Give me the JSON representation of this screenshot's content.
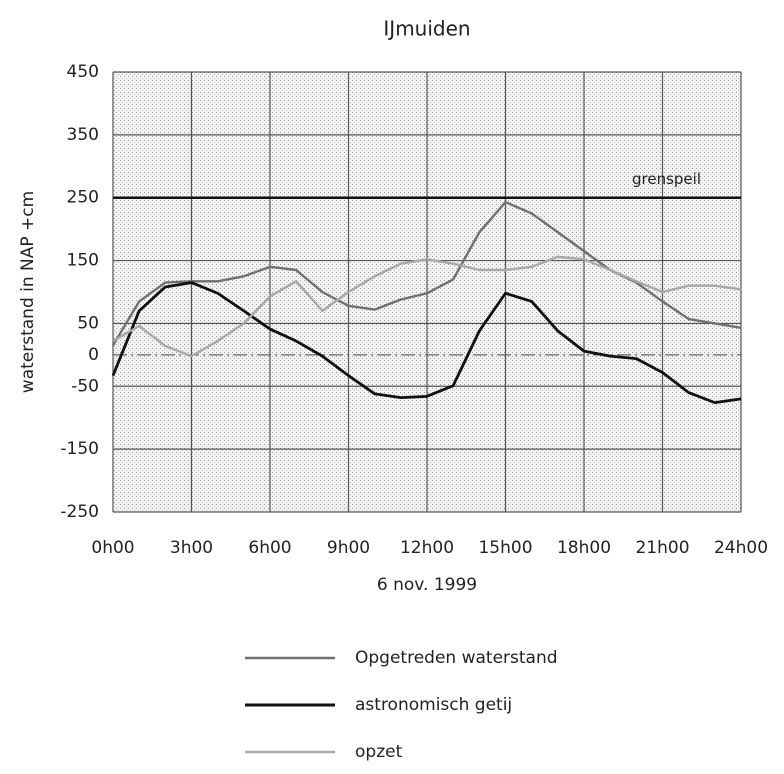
{
  "chart_data": {
    "type": "line",
    "title": "IJmuiden",
    "x_label": "6 nov. 1999",
    "y_label": "waterstand in NAP  +cm",
    "x": [
      0,
      1,
      2,
      3,
      4,
      5,
      6,
      7,
      8,
      9,
      10,
      11,
      12,
      13,
      14,
      15,
      16,
      17,
      18,
      19,
      20,
      21,
      22,
      23,
      24
    ],
    "series": [
      {
        "name": "Opgetreden waterstand",
        "color": "#707070",
        "values": [
          15,
          85,
          115,
          117,
          117,
          125,
          140,
          135,
          100,
          78,
          72,
          88,
          98,
          120,
          195,
          243,
          225,
          195,
          165,
          135,
          115,
          85,
          57,
          50,
          43
        ]
      },
      {
        "name": "astronomisch getij",
        "color": "#111111",
        "values": [
          -33,
          70,
          108,
          115,
          98,
          70,
          41,
          22,
          -2,
          -33,
          -62,
          -68,
          -66,
          -49,
          38,
          98,
          85,
          38,
          6,
          -2,
          -6,
          -28,
          -60,
          -76,
          -70
        ]
      },
      {
        "name": "opzet",
        "color": "#a8a8a8",
        "values": [
          22,
          46,
          14,
          -2,
          22,
          50,
          93,
          117,
          70,
          100,
          125,
          145,
          152,
          145,
          135,
          135,
          140,
          156,
          152,
          135,
          117,
          100,
          110,
          110,
          104
        ]
      }
    ],
    "xlim": [
      0,
      24
    ],
    "xticks": [
      {
        "value": 0,
        "label": "0h00"
      },
      {
        "value": 3,
        "label": "3h00"
      },
      {
        "value": 6,
        "label": "6h00"
      },
      {
        "value": 9,
        "label": "9h00"
      },
      {
        "value": 12,
        "label": "12h00"
      },
      {
        "value": 15,
        "label": "15h00"
      },
      {
        "value": 18,
        "label": "18h00"
      },
      {
        "value": 21,
        "label": "21h00"
      },
      {
        "value": 24,
        "label": "24h00"
      }
    ],
    "ylim": [
      -250,
      450
    ],
    "yticks": [
      450,
      350,
      250,
      150,
      50,
      0,
      -50,
      -150,
      -250
    ],
    "grid": true,
    "reference_lines": [
      {
        "value": 250,
        "label": "grenspeil"
      }
    ],
    "legend": "bottom"
  }
}
